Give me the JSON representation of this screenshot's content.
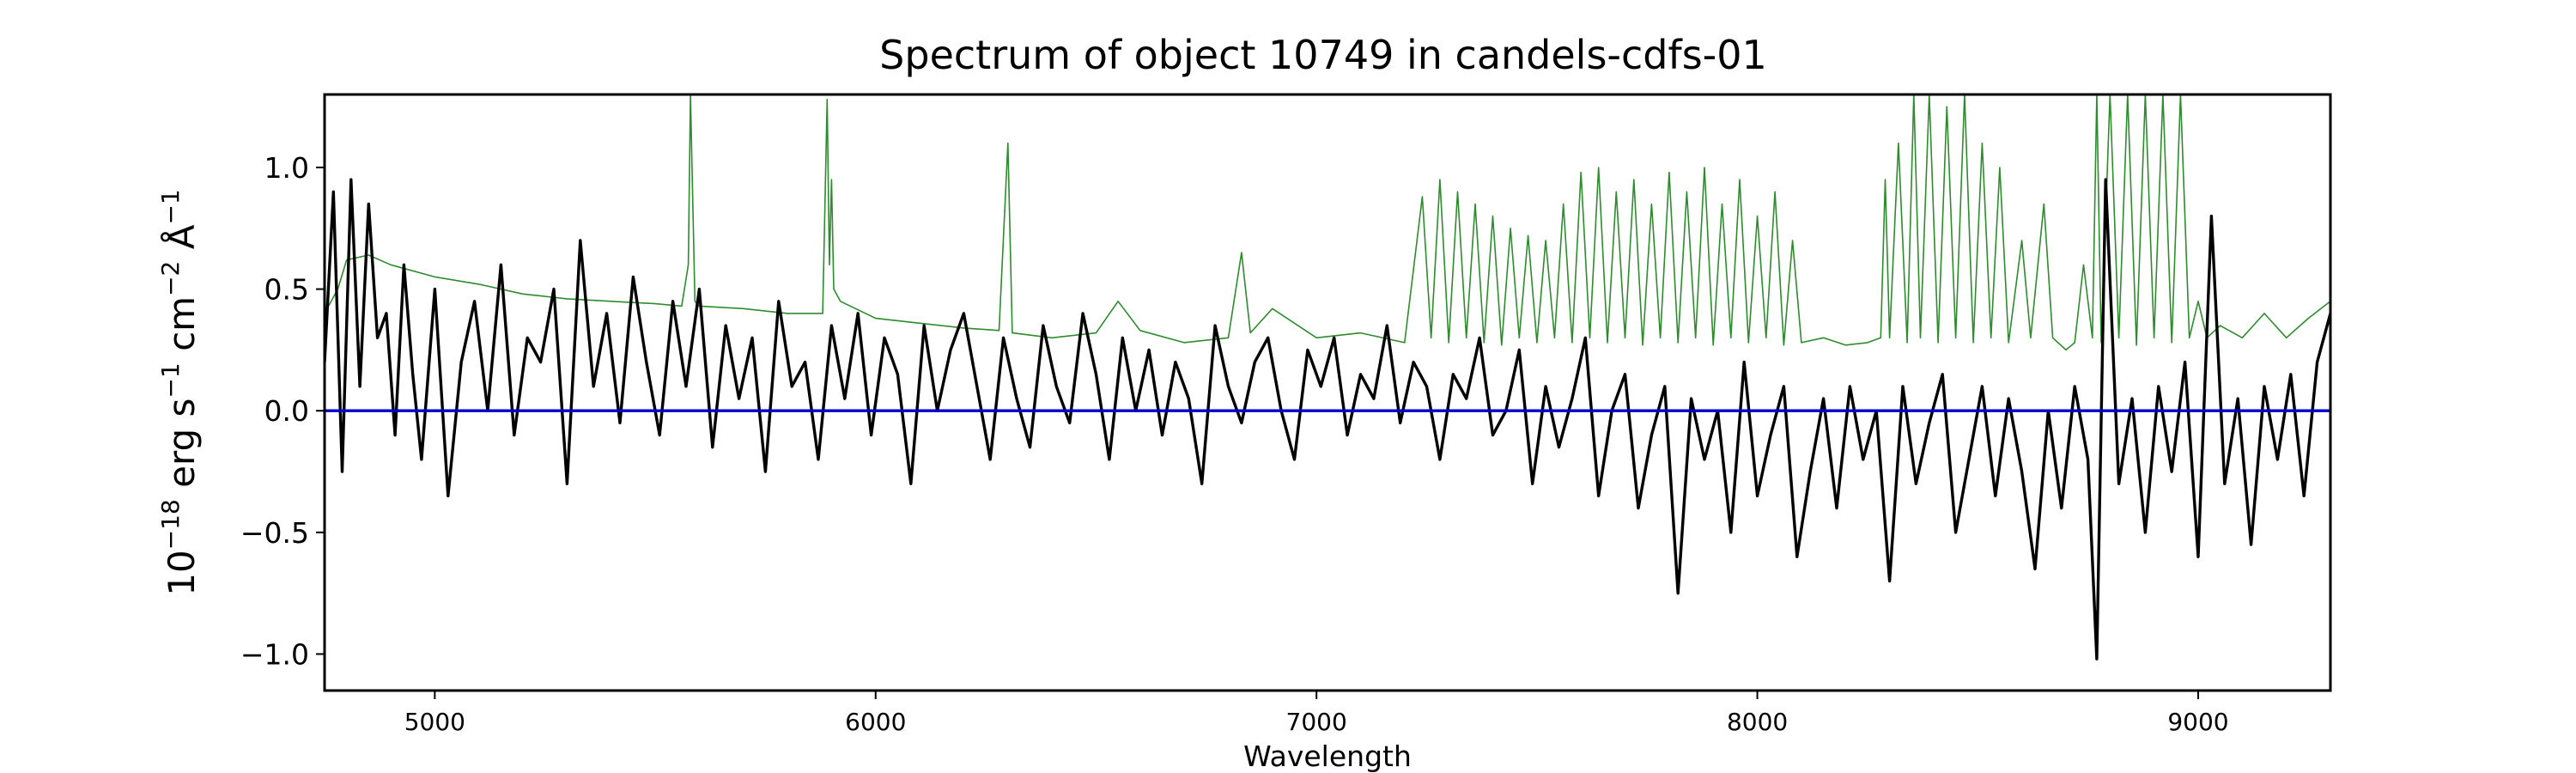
{
  "chart_data": {
    "type": "line",
    "title": "Spectrum of object 10749 in candels-cdfs-01",
    "xlabel": "Wavelength",
    "ylabel": {
      "base": "10",
      "exp": "−18",
      "unit_erg": "erg",
      "unit_s": "s",
      "exp_s": "−1",
      "unit_cm": "cm",
      "exp_cm": "−2",
      "unit_a": "Å",
      "exp_a": "−1"
    },
    "xlim": [
      4750,
      9300
    ],
    "ylim": [
      -1.15,
      1.3
    ],
    "xticks": [
      5000,
      6000,
      7000,
      8000,
      9000
    ],
    "xtick_labels": [
      "5000",
      "6000",
      "7000",
      "8000",
      "9000"
    ],
    "yticks": [
      -1.0,
      -0.5,
      0.0,
      0.5,
      1.0
    ],
    "ytick_labels": [
      "−1.0",
      "−0.5",
      "0.0",
      "0.5",
      "1.0"
    ],
    "grid": false,
    "series": [
      {
        "role": "noise",
        "color": "#2e8b2e",
        "x": [
          4750,
          4780,
          4800,
          4850,
          4900,
          5000,
          5100,
          5200,
          5300,
          5400,
          5500,
          5560,
          5575,
          5580,
          5590,
          5600,
          5700,
          5800,
          5880,
          5890,
          5895,
          5900,
          5905,
          5920,
          6000,
          6100,
          6200,
          6280,
          6300,
          6310,
          6400,
          6500,
          6550,
          6600,
          6700,
          6800,
          6830,
          6850,
          6900,
          7000,
          7100,
          7200,
          7240,
          7260,
          7280,
          7300,
          7320,
          7340,
          7360,
          7380,
          7400,
          7420,
          7440,
          7460,
          7480,
          7500,
          7520,
          7540,
          7560,
          7580,
          7600,
          7620,
          7640,
          7660,
          7680,
          7700,
          7720,
          7740,
          7760,
          7780,
          7800,
          7820,
          7840,
          7860,
          7880,
          7900,
          7920,
          7940,
          7960,
          7980,
          8000,
          8020,
          8040,
          8060,
          8080,
          8100,
          8150,
          8200,
          8250,
          8280,
          8290,
          8300,
          8320,
          8340,
          8355,
          8370,
          8390,
          8410,
          8430,
          8450,
          8470,
          8490,
          8510,
          8530,
          8550,
          8570,
          8600,
          8620,
          8650,
          8670,
          8700,
          8720,
          8740,
          8760,
          8770,
          8780,
          8800,
          8820,
          8840,
          8860,
          8880,
          8900,
          8920,
          8940,
          8960,
          8980,
          9000,
          9020,
          9050,
          9100,
          9150,
          9200,
          9250,
          9300
        ],
        "y": [
          0.4,
          0.5,
          0.62,
          0.64,
          0.6,
          0.55,
          0.52,
          0.48,
          0.46,
          0.45,
          0.44,
          0.43,
          0.6,
          1.3,
          0.45,
          0.43,
          0.42,
          0.4,
          0.4,
          1.28,
          0.6,
          0.95,
          0.5,
          0.45,
          0.38,
          0.36,
          0.34,
          0.33,
          1.1,
          0.32,
          0.3,
          0.32,
          0.45,
          0.33,
          0.28,
          0.3,
          0.65,
          0.32,
          0.42,
          0.3,
          0.32,
          0.28,
          0.88,
          0.3,
          0.95,
          0.28,
          0.9,
          0.3,
          0.85,
          0.28,
          0.8,
          0.27,
          0.75,
          0.3,
          0.72,
          0.28,
          0.7,
          0.3,
          0.85,
          0.28,
          0.98,
          0.3,
          1.0,
          0.28,
          0.9,
          0.3,
          0.95,
          0.27,
          0.85,
          0.3,
          0.98,
          0.28,
          0.9,
          0.3,
          1.0,
          0.27,
          0.85,
          0.3,
          0.95,
          0.28,
          0.8,
          0.3,
          0.9,
          0.27,
          0.7,
          0.28,
          0.3,
          0.27,
          0.28,
          0.3,
          0.95,
          0.3,
          1.1,
          0.28,
          1.3,
          0.3,
          1.3,
          0.28,
          1.25,
          0.3,
          1.3,
          0.28,
          1.1,
          0.3,
          1.0,
          0.28,
          0.7,
          0.3,
          0.85,
          0.3,
          0.25,
          0.28,
          0.6,
          0.3,
          1.3,
          0.28,
          1.3,
          0.3,
          1.3,
          0.27,
          1.3,
          0.3,
          1.3,
          0.28,
          1.3,
          0.3,
          0.45,
          0.3,
          0.35,
          0.3,
          0.4,
          0.3,
          0.38,
          0.45
        ]
      },
      {
        "role": "flux",
        "color": "#000000",
        "x": [
          4750,
          4770,
          4790,
          4810,
          4830,
          4850,
          4870,
          4890,
          4910,
          4930,
          4950,
          4970,
          5000,
          5030,
          5060,
          5090,
          5120,
          5150,
          5180,
          5210,
          5240,
          5270,
          5300,
          5330,
          5360,
          5390,
          5420,
          5450,
          5480,
          5510,
          5540,
          5570,
          5600,
          5630,
          5660,
          5690,
          5720,
          5750,
          5780,
          5810,
          5840,
          5870,
          5900,
          5930,
          5960,
          5990,
          6020,
          6050,
          6080,
          6110,
          6140,
          6170,
          6200,
          6230,
          6260,
          6290,
          6320,
          6350,
          6380,
          6410,
          6440,
          6470,
          6500,
          6530,
          6560,
          6590,
          6620,
          6650,
          6680,
          6710,
          6740,
          6770,
          6800,
          6830,
          6860,
          6890,
          6920,
          6950,
          6980,
          7010,
          7040,
          7070,
          7100,
          7130,
          7160,
          7190,
          7220,
          7250,
          7280,
          7310,
          7340,
          7370,
          7400,
          7430,
          7460,
          7490,
          7520,
          7550,
          7580,
          7610,
          7640,
          7670,
          7700,
          7730,
          7760,
          7790,
          7820,
          7850,
          7880,
          7910,
          7940,
          7970,
          8000,
          8030,
          8060,
          8090,
          8120,
          8150,
          8180,
          8210,
          8240,
          8270,
          8300,
          8330,
          8360,
          8390,
          8420,
          8450,
          8480,
          8510,
          8540,
          8570,
          8600,
          8630,
          8660,
          8690,
          8720,
          8750,
          8770,
          8790,
          8820,
          8850,
          8880,
          8910,
          8940,
          8970,
          9000,
          9030,
          9060,
          9090,
          9120,
          9150,
          9180,
          9210,
          9240,
          9270,
          9300
        ],
        "y": [
          0.2,
          0.9,
          -0.25,
          0.95,
          0.1,
          0.85,
          0.3,
          0.4,
          -0.1,
          0.6,
          0.15,
          -0.2,
          0.5,
          -0.35,
          0.2,
          0.45,
          0.0,
          0.6,
          -0.1,
          0.3,
          0.2,
          0.5,
          -0.3,
          0.7,
          0.1,
          0.4,
          -0.05,
          0.55,
          0.2,
          -0.1,
          0.45,
          0.1,
          0.5,
          -0.15,
          0.35,
          0.05,
          0.3,
          -0.25,
          0.45,
          0.1,
          0.2,
          -0.2,
          0.35,
          0.05,
          0.4,
          -0.1,
          0.3,
          0.15,
          -0.3,
          0.35,
          0.0,
          0.25,
          0.4,
          0.1,
          -0.2,
          0.3,
          0.05,
          -0.15,
          0.35,
          0.1,
          -0.05,
          0.4,
          0.15,
          -0.2,
          0.3,
          0.0,
          0.25,
          -0.1,
          0.2,
          0.05,
          -0.3,
          0.35,
          0.1,
          -0.05,
          0.2,
          0.3,
          0.0,
          -0.2,
          0.25,
          0.1,
          0.3,
          -0.1,
          0.15,
          0.05,
          0.35,
          -0.05,
          0.2,
          0.1,
          -0.2,
          0.15,
          0.05,
          0.3,
          -0.1,
          0.0,
          0.25,
          -0.3,
          0.1,
          -0.15,
          0.05,
          0.3,
          -0.35,
          0.0,
          0.15,
          -0.4,
          -0.1,
          0.1,
          -0.75,
          0.05,
          -0.2,
          0.0,
          -0.5,
          0.2,
          -0.35,
          -0.1,
          0.1,
          -0.6,
          -0.25,
          0.05,
          -0.4,
          0.1,
          -0.2,
          0.0,
          -0.7,
          0.1,
          -0.3,
          -0.05,
          0.15,
          -0.5,
          -0.2,
          0.1,
          -0.35,
          0.05,
          -0.25,
          -0.65,
          0.0,
          -0.4,
          0.1,
          -0.2,
          -1.02,
          0.95,
          -0.3,
          0.05,
          -0.5,
          0.1,
          -0.25,
          0.2,
          -0.6,
          0.8,
          -0.3,
          0.05,
          -0.55,
          0.1,
          -0.2,
          0.15,
          -0.35,
          0.2,
          0.4
        ]
      },
      {
        "role": "zero",
        "color": "#0000cc",
        "x": [
          4750,
          9300
        ],
        "y": [
          0.0,
          0.0
        ]
      }
    ]
  }
}
